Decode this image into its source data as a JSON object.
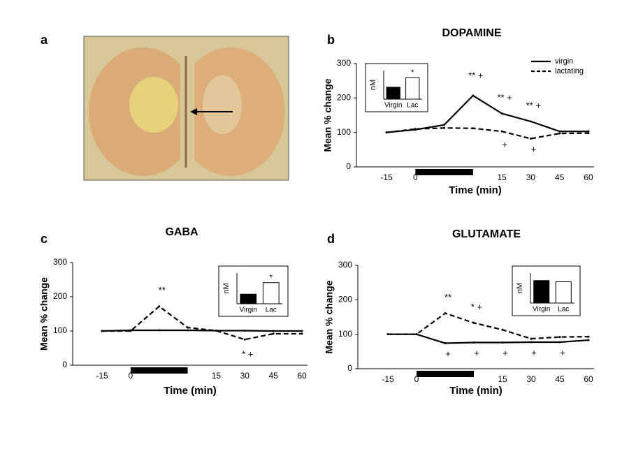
{
  "image_panel": {
    "label": "a"
  },
  "chart_data": [
    {
      "type": "line",
      "label": "b",
      "title": "DOPAMINE",
      "xlabel": "Time (min)",
      "ylabel": "Mean % change",
      "categories": [
        "-15",
        "0",
        null,
        null,
        "15",
        "30",
        "45",
        "60"
      ],
      "ylim": [
        0,
        300
      ],
      "yticks": [
        0,
        100,
        200,
        300
      ],
      "legend": "upper right",
      "series": [
        {
          "name": "virgin",
          "color": "#000000",
          "dash": false,
          "values": [
            100,
            108,
            122,
            207,
            155,
            132,
            103,
            103
          ]
        },
        {
          "name": "lactating",
          "color": "#000000",
          "dash": true,
          "values": [
            100,
            110,
            113,
            112,
            103,
            82,
            97,
            98
          ]
        }
      ],
      "annotations": [
        "** +",
        "** +",
        "** +",
        "+",
        "+"
      ],
      "inset": {
        "type": "bar",
        "ylabel": "nM",
        "categories": [
          "Virgin",
          "Lac"
        ],
        "values": [
          2.5,
          4.5
        ],
        "ylim": [
          0,
          6
        ],
        "colors": [
          "#000000",
          "#ffffff"
        ],
        "annotation": "*"
      }
    },
    {
      "type": "line",
      "label": "c",
      "title": "GABA",
      "xlabel": "Time (min)",
      "ylabel": "Mean % change",
      "categories": [
        "-15",
        "0",
        null,
        null,
        "15",
        "30",
        "45",
        "60"
      ],
      "ylim": [
        0,
        300
      ],
      "yticks": [
        0,
        100,
        200,
        300
      ],
      "series": [
        {
          "color": "#000000",
          "dash": false,
          "values": [
            100,
            102,
            102,
            102,
            101,
            101,
            100,
            100
          ]
        },
        {
          "color": "#000000",
          "dash": true,
          "values": [
            100,
            100,
            172,
            110,
            101,
            75,
            92,
            92
          ]
        }
      ],
      "annotations": [
        "**",
        "* +"
      ],
      "inset": {
        "type": "bar",
        "ylabel": "nM",
        "categories": [
          "Virgin",
          "Lac"
        ],
        "values": [
          250,
          550
        ],
        "ylim": [
          0,
          800
        ],
        "colors": [
          "#000000",
          "#ffffff"
        ],
        "annotation": "*"
      }
    },
    {
      "type": "line",
      "label": "d",
      "title": "GLUTAMATE",
      "xlabel": "Time (min)",
      "ylabel": "Mean % change",
      "categories": [
        "-15",
        "0",
        null,
        null,
        "15",
        "30",
        "45",
        "60"
      ],
      "ylim": [
        0,
        300
      ],
      "yticks": [
        0,
        100,
        200,
        300
      ],
      "series": [
        {
          "color": "#000000",
          "dash": false,
          "values": [
            100,
            100,
            74,
            76,
            76,
            77,
            77,
            83
          ]
        },
        {
          "color": "#000000",
          "dash": true,
          "values": [
            100,
            100,
            161,
            133,
            113,
            87,
            92,
            93
          ]
        }
      ],
      "annotations": [
        "**",
        "* +",
        "+",
        "+",
        "+",
        "+",
        "+"
      ],
      "inset": {
        "type": "bar",
        "ylabel": "nM",
        "categories": [
          "Virgin",
          "Lac"
        ],
        "values": [
          1500,
          1420
        ],
        "ylim": [
          0,
          2000
        ],
        "colors": [
          "#000000",
          "#ffffff"
        ]
      }
    }
  ]
}
